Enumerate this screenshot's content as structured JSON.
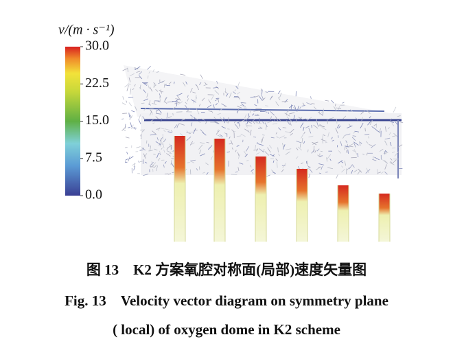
{
  "figure": {
    "colorbar": {
      "title": "v/(m · s⁻¹)",
      "ticks": [
        {
          "value": 30,
          "label": "30.0"
        },
        {
          "value": 22.5,
          "label": "22.5"
        },
        {
          "value": 15,
          "label": "15.0"
        },
        {
          "value": 7.5,
          "label": "7.5"
        },
        {
          "value": 0,
          "label": "0.0"
        }
      ]
    }
  },
  "caption_cn": "图 13　K2 方案氧腔对称面(局部)速度矢量图",
  "caption_en": [
    "Fig. 13　Velocity vector diagram on symmetry plane",
    "( local) of oxygen dome in K2 scheme"
  ]
}
